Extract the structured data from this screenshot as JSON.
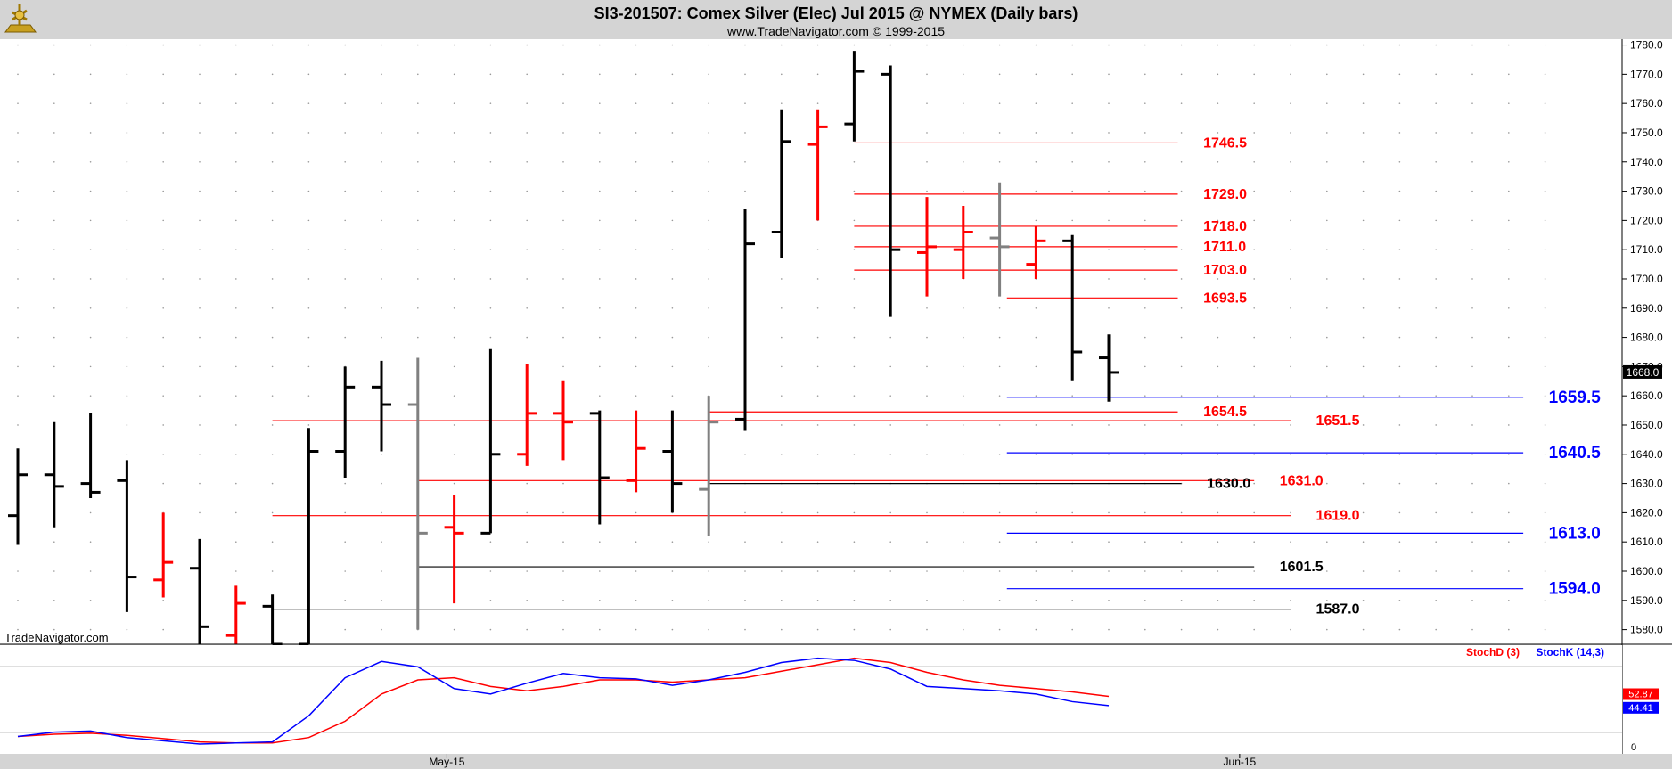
{
  "header": {
    "title": "SI3-201507:  Comex Silver (Elec) Jul 2015 @ NYMEX  (Daily bars)",
    "subtitle": "www.TradeNavigator.com © 1999-2015"
  },
  "watermark": "TradeNavigator.com",
  "colors": {
    "up_bar": "#000000",
    "down_bar": "#ff0000",
    "neutral_bar": "#808080",
    "red_level": "#ff0000",
    "blue_level": "#0000ff",
    "black_level": "#000000"
  },
  "chart_data": {
    "type": "ohlc",
    "ylim": [
      1575,
      1782
    ],
    "y_ticks": [
      "1780.0",
      "1770.0",
      "1760.0",
      "1750.0",
      "1740.0",
      "1730.0",
      "1720.0",
      "1710.0",
      "1700.0",
      "1690.0",
      "1680.0",
      "1670.0",
      "1660.0",
      "1650.0",
      "1640.0",
      "1630.0",
      "1620.0",
      "1610.0",
      "1600.0",
      "1590.0",
      "1580.0"
    ],
    "x_labels": [
      {
        "label": "May-15",
        "index": 11.8
      },
      {
        "label": "Jun-15",
        "index": 33.6
      }
    ],
    "last_price_label": "1668.0",
    "last_price": 1668.0,
    "bars": [
      {
        "o": 1619,
        "h": 1642,
        "l": 1609,
        "c": 1633,
        "color": "black"
      },
      {
        "o": 1633,
        "h": 1651,
        "l": 1615,
        "c": 1629,
        "color": "black"
      },
      {
        "o": 1630,
        "h": 1654,
        "l": 1625,
        "c": 1627,
        "color": "black"
      },
      {
        "o": 1631,
        "h": 1638,
        "l": 1586,
        "c": 1598,
        "color": "black"
      },
      {
        "o": 1597,
        "h": 1620,
        "l": 1591,
        "c": 1603,
        "color": "red"
      },
      {
        "o": 1601,
        "h": 1611,
        "l": 1575,
        "c": 1581,
        "color": "black"
      },
      {
        "o": 1578,
        "h": 1595,
        "l": 1575,
        "c": 1589,
        "color": "red"
      },
      {
        "o": 1588,
        "h": 1592,
        "l": 1575,
        "c": 1575,
        "color": "black"
      },
      {
        "o": 1575,
        "h": 1649,
        "l": 1575,
        "c": 1641,
        "color": "black"
      },
      {
        "o": 1641,
        "h": 1670,
        "l": 1632,
        "c": 1663,
        "color": "black"
      },
      {
        "o": 1663,
        "h": 1672,
        "l": 1641,
        "c": 1657,
        "color": "black"
      },
      {
        "o": 1657,
        "h": 1673,
        "l": 1580,
        "c": 1613,
        "color": "gray"
      },
      {
        "o": 1615,
        "h": 1626,
        "l": 1589,
        "c": 1613,
        "color": "red"
      },
      {
        "o": 1613,
        "h": 1676,
        "l": 1613,
        "c": 1640,
        "color": "black"
      },
      {
        "o": 1640,
        "h": 1671,
        "l": 1636,
        "c": 1654,
        "color": "red"
      },
      {
        "o": 1654,
        "h": 1665,
        "l": 1638,
        "c": 1651,
        "color": "red"
      },
      {
        "o": 1654,
        "h": 1655,
        "l": 1616,
        "c": 1632,
        "color": "black"
      },
      {
        "o": 1631,
        "h": 1655,
        "l": 1627,
        "c": 1642,
        "color": "red"
      },
      {
        "o": 1641,
        "h": 1655,
        "l": 1620,
        "c": 1630,
        "color": "black"
      },
      {
        "o": 1628,
        "h": 1660,
        "l": 1612,
        "c": 1651,
        "color": "gray"
      },
      {
        "o": 1652,
        "h": 1724,
        "l": 1648,
        "c": 1712,
        "color": "black"
      },
      {
        "o": 1716,
        "h": 1758,
        "l": 1707,
        "c": 1747,
        "color": "black"
      },
      {
        "o": 1746,
        "h": 1758,
        "l": 1720,
        "c": 1752,
        "color": "red"
      },
      {
        "o": 1753,
        "h": 1778,
        "l": 1747,
        "c": 1771,
        "color": "black"
      },
      {
        "o": 1770,
        "h": 1773,
        "l": 1687,
        "c": 1710,
        "color": "black"
      },
      {
        "o": 1709,
        "h": 1728,
        "l": 1694,
        "c": 1711,
        "color": "red"
      },
      {
        "o": 1710,
        "h": 1725,
        "l": 1700,
        "c": 1716,
        "color": "red"
      },
      {
        "o": 1714,
        "h": 1733,
        "l": 1694,
        "c": 1711,
        "color": "gray"
      },
      {
        "o": 1705,
        "h": 1718,
        "l": 1700,
        "c": 1713,
        "color": "red"
      },
      {
        "o": 1713,
        "h": 1715,
        "l": 1665,
        "c": 1675,
        "color": "black"
      },
      {
        "o": 1673,
        "h": 1681,
        "l": 1658,
        "c": 1668,
        "color": "black"
      }
    ],
    "levels": [
      {
        "value": 1746.5,
        "label": "1746.5",
        "color": "red",
        "start": 23,
        "end": 31.9,
        "label_index": 32.6
      },
      {
        "value": 1729.0,
        "label": "1729.0",
        "color": "red",
        "start": 23,
        "end": 31.9,
        "label_index": 32.6
      },
      {
        "value": 1718.0,
        "label": "1718.0",
        "color": "red",
        "start": 23,
        "end": 31.9,
        "label_index": 32.6
      },
      {
        "value": 1711.0,
        "label": "1711.0",
        "color": "red",
        "start": 23,
        "end": 31.9,
        "label_index": 32.6
      },
      {
        "value": 1703.0,
        "label": "1703.0",
        "color": "red",
        "start": 23,
        "end": 31.9,
        "label_index": 32.6
      },
      {
        "value": 1693.5,
        "label": "1693.5",
        "color": "red",
        "start": 27.2,
        "end": 31.9,
        "label_index": 32.6
      },
      {
        "value": 1659.5,
        "label": "1659.5",
        "color": "blue",
        "start": 27.2,
        "end": 41.4,
        "label_index": 42.1
      },
      {
        "value": 1654.5,
        "label": "1654.5",
        "color": "red",
        "start": 19,
        "end": 31.9,
        "label_index": 32.6
      },
      {
        "value": 1651.5,
        "label": "1651.5",
        "color": "red",
        "start": 7,
        "end": 35.0,
        "label_index": 35.7
      },
      {
        "value": 1640.5,
        "label": "1640.5",
        "color": "blue",
        "start": 27.2,
        "end": 41.4,
        "label_index": 42.1
      },
      {
        "value": 1631.0,
        "label": "1631.0",
        "color": "red",
        "start": 11,
        "end": 34.0,
        "label_index": 34.7
      },
      {
        "value": 1630.0,
        "label": "1630.0",
        "color": "black",
        "start": 19,
        "end": 32.0,
        "label_index": 32.7
      },
      {
        "value": 1619.0,
        "label": "1619.0",
        "color": "red",
        "start": 7,
        "end": 35.0,
        "label_index": 35.7
      },
      {
        "value": 1613.0,
        "label": "1613.0",
        "color": "blue",
        "start": 27.2,
        "end": 41.4,
        "label_index": 42.1
      },
      {
        "value": 1601.5,
        "label": "1601.5",
        "color": "black",
        "start": 11,
        "end": 34.0,
        "label_index": 34.7
      },
      {
        "value": 1594.0,
        "label": "1594.0",
        "color": "blue",
        "start": 27.2,
        "end": 41.4,
        "label_index": 42.1
      },
      {
        "value": 1587.0,
        "label": "1587.0",
        "color": "black",
        "start": 7,
        "end": 35.0,
        "label_index": 35.7
      }
    ],
    "stochastic": {
      "label_d": "StochD (3)",
      "label_k": "StochK (14,3)",
      "d_label": "52.87",
      "k_label": "44.41",
      "bottom_label": "0",
      "ylim": [
        0,
        100
      ],
      "upper_band": 80,
      "lower_band": 20,
      "d_values": [
        16,
        18,
        19,
        17,
        14,
        11,
        10,
        10,
        15,
        30,
        55,
        68,
        70,
        62,
        58,
        62,
        68,
        68,
        66,
        68,
        70,
        76,
        82,
        88,
        84,
        75,
        68,
        63,
        60,
        57,
        52.87
      ],
      "k_values": [
        16,
        20,
        21,
        15,
        12,
        9,
        10,
        11,
        35,
        70,
        85,
        80,
        60,
        55,
        65,
        74,
        70,
        69,
        63,
        68,
        75,
        84,
        88,
        86,
        78,
        62,
        60,
        58,
        55,
        48,
        44.41
      ]
    }
  }
}
